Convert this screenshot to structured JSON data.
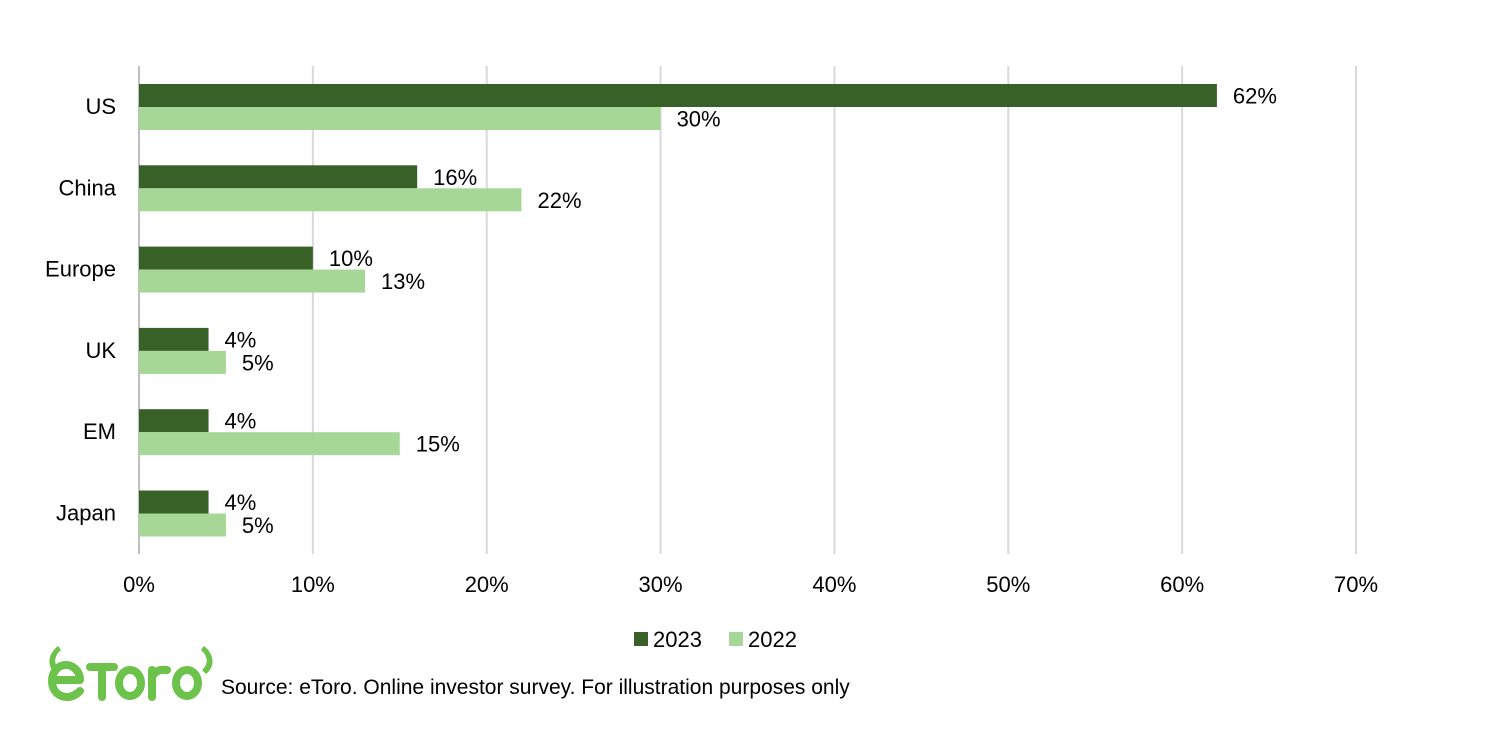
{
  "colors": {
    "series_2023": "#386128",
    "series_2022": "#a6d796",
    "grid": "#d9d9d9",
    "axis": "#bfbfbf",
    "text": "#000000",
    "logo": "#6cc24a"
  },
  "logo": {
    "text": "eToro",
    "icon": "etoro-bull-horns-logo"
  },
  "source": "Source: eToro. Online investor survey. For illustration purposes only",
  "chart_data": {
    "type": "bar",
    "orientation": "horizontal",
    "title": "",
    "xlabel": "",
    "ylabel": "",
    "categories": [
      "US",
      "China",
      "Europe",
      "UK",
      "EM",
      "Japan"
    ],
    "series": [
      {
        "name": "2023",
        "values": [
          62,
          16,
          10,
          4,
          4,
          4
        ],
        "labels": [
          "62%",
          "16%",
          "10%",
          "4%",
          "4%",
          "4%"
        ]
      },
      {
        "name": "2022",
        "values": [
          30,
          22,
          13,
          5,
          15,
          5
        ],
        "labels": [
          "30%",
          "22%",
          "13%",
          "5%",
          "15%",
          "5%"
        ]
      }
    ],
    "xlim": [
      0,
      70
    ],
    "x_ticks": [
      0,
      10,
      20,
      30,
      40,
      50,
      60,
      70
    ],
    "x_tick_labels": [
      "0%",
      "10%",
      "20%",
      "30%",
      "40%",
      "50%",
      "60%",
      "70%"
    ],
    "grid": "vertical",
    "legend": {
      "position": "bottom",
      "entries": [
        "2023",
        "2022"
      ]
    }
  }
}
